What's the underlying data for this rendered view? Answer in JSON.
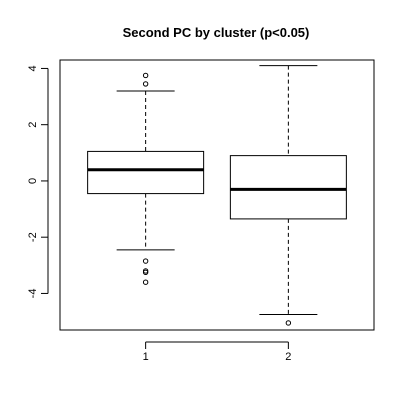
{
  "chart_data": {
    "type": "boxplot",
    "title": "Second PC by cluster (p<0.05)",
    "xlabel": "",
    "ylabel": "",
    "categories": [
      "1",
      "2"
    ],
    "ylim": [
      -5.3,
      4.3
    ],
    "yticks": [
      -4,
      -2,
      0,
      2,
      4
    ],
    "ytick_labels": [
      "-4",
      "-2",
      "0",
      "2",
      "4"
    ],
    "boxes": [
      {
        "category": "1",
        "whisker_low": -2.45,
        "q1": -0.45,
        "median": 0.4,
        "q3": 1.05,
        "whisker_high": 3.2,
        "outliers": [
          3.75,
          3.45,
          -2.85,
          -3.2,
          -3.25,
          -3.6
        ]
      },
      {
        "category": "2",
        "whisker_low": -4.75,
        "q1": -1.35,
        "median": -0.3,
        "q3": 0.9,
        "whisker_high": 4.1,
        "outliers": [
          -5.05
        ]
      }
    ],
    "grid": false
  }
}
